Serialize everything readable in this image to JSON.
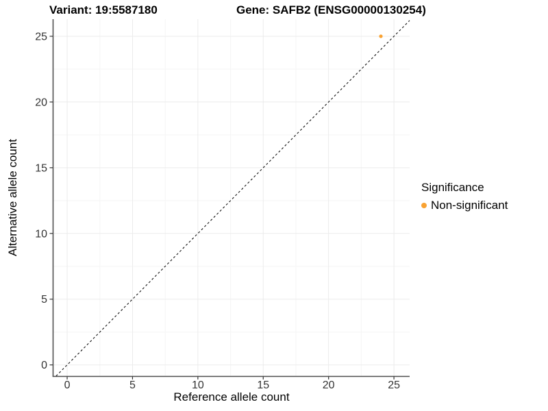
{
  "chart_data": {
    "type": "scatter",
    "title_left": "Variant: 19:5587180",
    "title_right": "Gene: SAFB2 (ENSG00000130254)",
    "xlabel": "Reference allele count",
    "ylabel": "Alternative allele count",
    "xlim": [
      -1.05,
      26.2
    ],
    "ylim": [
      -0.85,
      26.3
    ],
    "x_major_ticks": [
      0,
      5,
      10,
      15,
      20,
      25
    ],
    "y_major_ticks": [
      0,
      5,
      10,
      15,
      20,
      25
    ],
    "x_minor_ticks": [
      2.5,
      7.5,
      12.5,
      17.5,
      22.5
    ],
    "y_minor_ticks": [
      2.5,
      7.5,
      12.5,
      17.5,
      22.5
    ],
    "grid": true,
    "series": [
      {
        "name": "Non-significant",
        "color": "#F9A232",
        "points": [
          {
            "x": 24,
            "y": 25
          }
        ]
      }
    ],
    "reference_line": {
      "type": "identity",
      "slope": 1,
      "intercept": 0,
      "style": "dashed",
      "color": "#111111"
    },
    "legend": {
      "title": "Significance",
      "position": "right",
      "items": [
        {
          "label": "Non-significant",
          "color": "#F9A232"
        }
      ]
    }
  },
  "colors": {
    "background": "#FFFFFF",
    "panel_background": "#FFFFFF",
    "grid_major": "#EBEBEB",
    "grid_minor": "#F5F5F5",
    "axis_line": "#4D4D4D",
    "tick_mark": "#333333",
    "tick_label": "#333333",
    "title_text": "#000000",
    "point": "#F9A232"
  }
}
